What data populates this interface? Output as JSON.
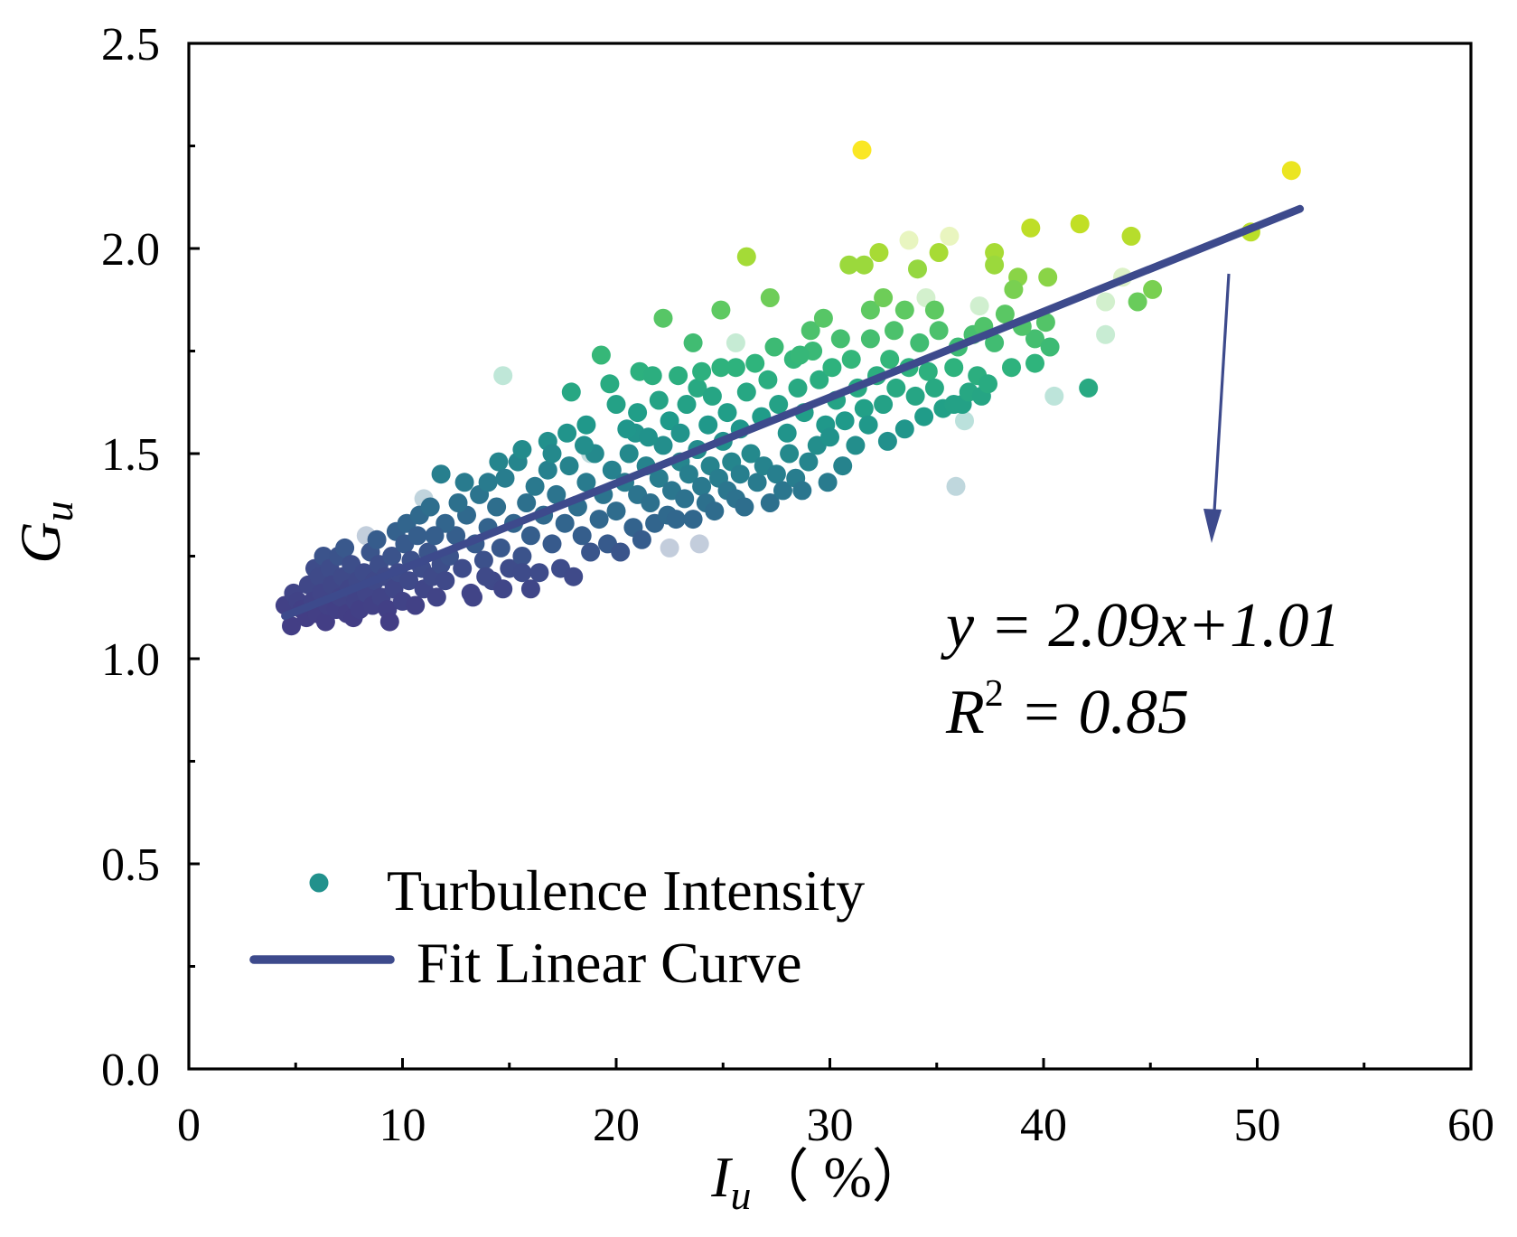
{
  "chart_data": {
    "type": "scatter",
    "title": "",
    "xlabel": {
      "symbol": "I",
      "subscript": "u",
      "unit": "（ %）"
    },
    "ylabel": {
      "symbol": "G",
      "subscript": "u"
    },
    "xlim": [
      0,
      60
    ],
    "ylim": [
      0,
      2.5
    ],
    "x_ticks": [
      0,
      10,
      20,
      30,
      40,
      50,
      60
    ],
    "x_tick_labels": [
      "0",
      "10",
      "20",
      "30",
      "40",
      "50",
      "60"
    ],
    "x_minor_ticks": [
      5,
      15,
      25,
      35,
      45,
      55
    ],
    "y_ticks": [
      0,
      0.5,
      1.0,
      1.5,
      2.0,
      2.5
    ],
    "y_tick_labels": [
      "0.0",
      "0.5",
      "1.0",
      "1.5",
      "2.0",
      "2.5"
    ],
    "y_minor_ticks": [
      0.25,
      0.75,
      1.25,
      1.75,
      2.25
    ],
    "grid": false,
    "legend_position": "bottom-left",
    "series": [
      {
        "name": "Turbulence Intensity",
        "legend_color": "#21918c",
        "colorscale": [
          {
            "value": 1.1,
            "color": "#433e85"
          },
          {
            "value": 1.22,
            "color": "#3e4c8a"
          },
          {
            "value": 1.32,
            "color": "#33638d"
          },
          {
            "value": 1.45,
            "color": "#277f8e"
          },
          {
            "value": 1.58,
            "color": "#1f9a8a"
          },
          {
            "value": 1.72,
            "color": "#2fb47c"
          },
          {
            "value": 1.85,
            "color": "#5ec962"
          },
          {
            "value": 1.97,
            "color": "#a0da39"
          },
          {
            "value": 2.1,
            "color": "#d0e11c"
          },
          {
            "value": 2.25,
            "color": "#fde725"
          }
        ],
        "points": [
          [
            4.5,
            1.13
          ],
          [
            4.8,
            1.08
          ],
          [
            4.9,
            1.16
          ],
          [
            5.1,
            1.14
          ],
          [
            5.3,
            1.12
          ],
          [
            5.5,
            1.1
          ],
          [
            5.6,
            1.18
          ],
          [
            5.8,
            1.14
          ],
          [
            5.9,
            1.22
          ],
          [
            6.0,
            1.11
          ],
          [
            6.1,
            1.2
          ],
          [
            6.2,
            1.16
          ],
          [
            6.3,
            1.25
          ],
          [
            6.4,
            1.09
          ],
          [
            6.5,
            1.13
          ],
          [
            6.6,
            1.22
          ],
          [
            6.7,
            1.18
          ],
          [
            6.9,
            1.12
          ],
          [
            7.0,
            1.25
          ],
          [
            7.1,
            1.15
          ],
          [
            7.2,
            1.2
          ],
          [
            7.3,
            1.27
          ],
          [
            7.4,
            1.11
          ],
          [
            7.5,
            1.17
          ],
          [
            7.6,
            1.23
          ],
          [
            7.7,
            1.1
          ],
          [
            7.8,
            1.14
          ],
          [
            7.9,
            1.19
          ],
          [
            8.0,
            1.12
          ],
          [
            8.2,
            1.21
          ],
          [
            8.3,
            1.16
          ],
          [
            8.5,
            1.26
          ],
          [
            8.6,
            1.13
          ],
          [
            8.7,
            1.19
          ],
          [
            8.8,
            1.29
          ],
          [
            8.9,
            1.23
          ],
          [
            9.0,
            1.15
          ],
          [
            9.2,
            1.2
          ],
          [
            9.3,
            1.12
          ],
          [
            9.4,
            1.09
          ],
          [
            9.5,
            1.25
          ],
          [
            9.6,
            1.17
          ],
          [
            9.7,
            1.31
          ],
          [
            9.8,
            1.21
          ],
          [
            10.0,
            1.14
          ],
          [
            10.1,
            1.28
          ],
          [
            10.2,
            1.33
          ],
          [
            10.3,
            1.19
          ],
          [
            10.4,
            1.24
          ],
          [
            10.6,
            1.13
          ],
          [
            10.7,
            1.3
          ],
          [
            10.8,
            1.35
          ],
          [
            10.9,
            1.22
          ],
          [
            11.0,
            1.17
          ],
          [
            11.2,
            1.26
          ],
          [
            11.3,
            1.37
          ],
          [
            11.4,
            1.2
          ],
          [
            11.6,
            1.15
          ],
          [
            11.8,
            1.23
          ],
          [
            12.0,
            1.19
          ],
          [
            12.2,
            1.25
          ],
          [
            12.5,
            1.3
          ],
          [
            12.8,
            1.22
          ],
          [
            13.0,
            1.35
          ],
          [
            13.2,
            1.16
          ],
          [
            13.3,
            1.15
          ],
          [
            13.4,
            1.28
          ],
          [
            13.6,
            1.4
          ],
          [
            13.8,
            1.24
          ],
          [
            14.0,
            1.32
          ],
          [
            14.0,
            1.43
          ],
          [
            14.2,
            1.19
          ],
          [
            14.4,
            1.37
          ],
          [
            14.5,
            1.48
          ],
          [
            14.6,
            1.27
          ],
          [
            14.7,
            1.17
          ],
          [
            14.8,
            1.44
          ],
          [
            15.0,
            1.22
          ],
          [
            15.2,
            1.33
          ],
          [
            15.4,
            1.48
          ],
          [
            15.6,
            1.25
          ],
          [
            15.6,
            1.21
          ],
          [
            15.6,
            1.51
          ],
          [
            15.8,
            1.38
          ],
          [
            16.0,
            1.3
          ],
          [
            16.2,
            1.42
          ],
          [
            16.4,
            1.21
          ],
          [
            16.6,
            1.35
          ],
          [
            16.8,
            1.46
          ],
          [
            16.8,
            1.53
          ],
          [
            17.0,
            1.28
          ],
          [
            17.2,
            1.4
          ],
          [
            17.4,
            1.22
          ],
          [
            17.6,
            1.33
          ],
          [
            17.8,
            1.47
          ],
          [
            18.0,
            1.2
          ],
          [
            18.2,
            1.37
          ],
          [
            18.4,
            1.3
          ],
          [
            18.6,
            1.43
          ],
          [
            18.8,
            1.26
          ],
          [
            19.0,
            1.5
          ],
          [
            19.2,
            1.34
          ],
          [
            19.4,
            1.4
          ],
          [
            19.6,
            1.28
          ],
          [
            19.8,
            1.46
          ],
          [
            20.0,
            1.36
          ],
          [
            20.2,
            1.26
          ],
          [
            20.4,
            1.43
          ],
          [
            20.6,
            1.5
          ],
          [
            20.8,
            1.32
          ],
          [
            21.0,
            1.4
          ],
          [
            21.2,
            1.29
          ],
          [
            21.4,
            1.47
          ],
          [
            21.6,
            1.38
          ],
          [
            21.8,
            1.33
          ],
          [
            22.0,
            1.44
          ],
          [
            22.2,
            1.52
          ],
          [
            22.4,
            1.35
          ],
          [
            22.6,
            1.41
          ],
          [
            22.8,
            1.34
          ],
          [
            23.0,
            1.48
          ],
          [
            23.2,
            1.39
          ],
          [
            23.4,
            1.45
          ],
          [
            23.6,
            1.34
          ],
          [
            23.8,
            1.51
          ],
          [
            24.0,
            1.42
          ],
          [
            24.2,
            1.38
          ],
          [
            24.4,
            1.47
          ],
          [
            24.6,
            1.36
          ],
          [
            24.8,
            1.44
          ],
          [
            25.0,
            1.53
          ],
          [
            25.2,
            1.41
          ],
          [
            25.4,
            1.48
          ],
          [
            25.6,
            1.39
          ],
          [
            25.8,
            1.45
          ],
          [
            26.0,
            1.37
          ],
          [
            26.3,
            1.5
          ],
          [
            26.6,
            1.43
          ],
          [
            26.9,
            1.47
          ],
          [
            27.2,
            1.38
          ],
          [
            27.5,
            1.45
          ],
          [
            27.8,
            1.41
          ],
          [
            28.1,
            1.5
          ],
          [
            28.4,
            1.44
          ],
          [
            28.7,
            1.41
          ],
          [
            29.0,
            1.48
          ],
          [
            29.4,
            1.52
          ],
          [
            29.9,
            1.43
          ],
          [
            30.6,
            1.47
          ],
          [
            11.8,
            1.45
          ],
          [
            12.9,
            1.43
          ],
          [
            12.0,
            1.33
          ],
          [
            11.5,
            1.3
          ],
          [
            12.6,
            1.38
          ],
          [
            13.9,
            1.2
          ],
          [
            16.0,
            1.17
          ],
          [
            17.0,
            1.5
          ],
          [
            18.5,
            1.52
          ],
          [
            20.9,
            1.55
          ],
          [
            17.7,
            1.55
          ],
          [
            18.6,
            1.57
          ],
          [
            19.7,
            1.67
          ],
          [
            20.0,
            1.62
          ],
          [
            20.5,
            1.56
          ],
          [
            21.0,
            1.6
          ],
          [
            21.1,
            1.7
          ],
          [
            21.5,
            1.54
          ],
          [
            21.7,
            1.69
          ],
          [
            22.0,
            1.63
          ],
          [
            22.5,
            1.58
          ],
          [
            22.9,
            1.69
          ],
          [
            23.0,
            1.55
          ],
          [
            23.3,
            1.62
          ],
          [
            23.8,
            1.66
          ],
          [
            24.0,
            1.7
          ],
          [
            24.3,
            1.57
          ],
          [
            24.5,
            1.64
          ],
          [
            24.9,
            1.71
          ],
          [
            25.2,
            1.6
          ],
          [
            25.6,
            1.71
          ],
          [
            25.8,
            1.56
          ],
          [
            26.1,
            1.65
          ],
          [
            26.5,
            1.72
          ],
          [
            26.8,
            1.59
          ],
          [
            27.1,
            1.68
          ],
          [
            27.4,
            1.76
          ],
          [
            27.6,
            1.62
          ],
          [
            28.0,
            1.55
          ],
          [
            28.3,
            1.73
          ],
          [
            28.5,
            1.66
          ],
          [
            28.8,
            1.6
          ],
          [
            29.2,
            1.75
          ],
          [
            29.5,
            1.68
          ],
          [
            29.8,
            1.57
          ],
          [
            30.0,
            1.54
          ],
          [
            30.1,
            1.71
          ],
          [
            30.3,
            1.63
          ],
          [
            30.7,
            1.58
          ],
          [
            31.0,
            1.73
          ],
          [
            31.2,
            1.52
          ],
          [
            31.3,
            1.66
          ],
          [
            31.6,
            1.61
          ],
          [
            31.8,
            1.57
          ],
          [
            31.9,
            1.78
          ],
          [
            32.2,
            1.69
          ],
          [
            32.5,
            1.62
          ],
          [
            32.7,
            1.53
          ],
          [
            32.8,
            1.73
          ],
          [
            33.1,
            1.66
          ],
          [
            33.5,
            1.56
          ],
          [
            33.7,
            1.71
          ],
          [
            34.0,
            1.64
          ],
          [
            34.4,
            1.59
          ],
          [
            34.6,
            1.7
          ],
          [
            34.9,
            1.66
          ],
          [
            35.3,
            1.61
          ],
          [
            35.8,
            1.62
          ],
          [
            35.8,
            1.71
          ],
          [
            36.2,
            1.62
          ],
          [
            36.5,
            1.65
          ],
          [
            36.9,
            1.69
          ],
          [
            37.1,
            1.64
          ],
          [
            37.4,
            1.67
          ],
          [
            29.1,
            1.8
          ],
          [
            29.7,
            1.83
          ],
          [
            31.9,
            1.85
          ],
          [
            32.5,
            1.88
          ],
          [
            33.5,
            1.85
          ],
          [
            34.9,
            1.85
          ],
          [
            35.1,
            1.8
          ],
          [
            36.7,
            1.79
          ],
          [
            37.7,
            1.77
          ],
          [
            38.5,
            1.71
          ],
          [
            39.6,
            1.72
          ],
          [
            39.6,
            1.78
          ],
          [
            40.1,
            1.82
          ],
          [
            40.3,
            1.76
          ],
          [
            39.0,
            1.81
          ],
          [
            38.2,
            1.84
          ],
          [
            33.0,
            1.8
          ],
          [
            30.5,
            1.78
          ],
          [
            28.6,
            1.74
          ],
          [
            27.2,
            1.88
          ],
          [
            24.9,
            1.85
          ],
          [
            22.2,
            1.83
          ],
          [
            23.6,
            1.77
          ],
          [
            19.3,
            1.74
          ],
          [
            17.9,
            1.65
          ],
          [
            36.0,
            1.76
          ],
          [
            37.2,
            1.81
          ],
          [
            34.2,
            1.77
          ],
          [
            42.1,
            1.66
          ],
          [
            31.5,
            2.24
          ],
          [
            51.6,
            2.19
          ],
          [
            41.7,
            2.06
          ],
          [
            39.4,
            2.05
          ],
          [
            44.1,
            2.03
          ],
          [
            49.7,
            2.04
          ],
          [
            26.1,
            1.98
          ],
          [
            32.3,
            1.99
          ],
          [
            30.9,
            1.96
          ],
          [
            31.6,
            1.96
          ],
          [
            35.1,
            1.99
          ],
          [
            37.7,
            1.99
          ],
          [
            37.7,
            1.96
          ],
          [
            34.1,
            1.95
          ],
          [
            38.8,
            1.93
          ],
          [
            40.2,
            1.93
          ],
          [
            38.6,
            1.9
          ],
          [
            45.1,
            1.9
          ],
          [
            44.4,
            1.87
          ]
        ],
        "faded_points": [
          [
            14.7,
            1.69
          ],
          [
            35.9,
            1.42
          ],
          [
            35.6,
            2.03
          ],
          [
            33.7,
            2.02
          ],
          [
            42.9,
            1.79
          ],
          [
            42.9,
            1.87
          ],
          [
            43.7,
            1.93
          ],
          [
            8.3,
            1.3
          ],
          [
            9.5,
            1.14
          ],
          [
            11.0,
            1.39
          ],
          [
            22.5,
            1.27
          ],
          [
            23.9,
            1.28
          ],
          [
            34.5,
            1.88
          ],
          [
            36.3,
            1.58
          ],
          [
            18.8,
            1.5
          ],
          [
            25.6,
            1.77
          ],
          [
            37.0,
            1.86
          ],
          [
            40.5,
            1.64
          ]
        ]
      }
    ],
    "fit": {
      "name": "Fit Linear Curve",
      "slope": 2.09,
      "intercept": 1.01,
      "r2": 0.85,
      "x_divisor": 100,
      "x_start": 4.5,
      "x_end": 52,
      "color": "#3d4a8c"
    },
    "annotation": {
      "equation": "y = 2.09x+1.01",
      "r2_symbol": "R",
      "r2_exp": "2",
      "r2_value": "= 0.85"
    }
  }
}
